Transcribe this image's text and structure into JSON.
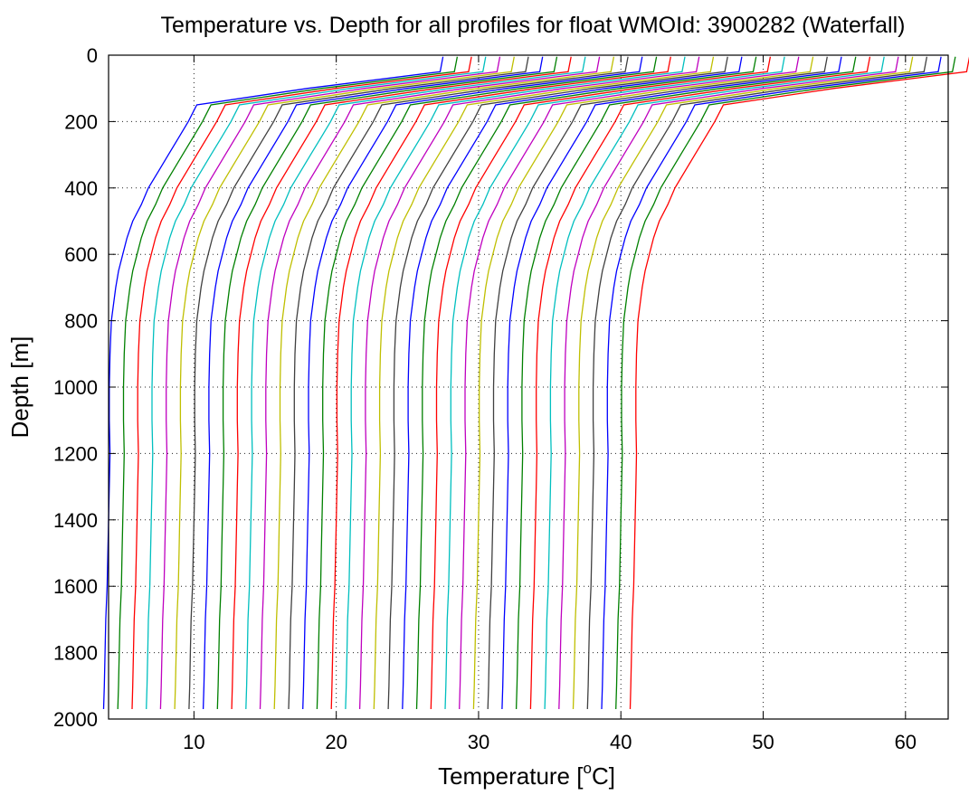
{
  "chart_data": {
    "type": "line",
    "title": "Temperature vs. Depth for all profiles for float WMOId: 3900282 (Waterfall)",
    "xlabel_main": "Temperature [",
    "xlabel_sup": "o",
    "xlabel_end": "C]",
    "ylabel": "Depth [m]",
    "xlim": [
      4,
      63
    ],
    "ylim": [
      2000,
      0
    ],
    "y_reversed": true,
    "grid": true,
    "xticks": [
      10,
      20,
      30,
      40,
      50,
      60
    ],
    "yticks": [
      0,
      200,
      400,
      600,
      800,
      1000,
      1200,
      1400,
      1600,
      1800,
      2000
    ],
    "xtick_labels": [
      "10",
      "20",
      "30",
      "40",
      "50",
      "60"
    ],
    "ytick_labels": [
      "0",
      "200",
      "400",
      "600",
      "800",
      "1000",
      "1200",
      "1400",
      "1600",
      "1800",
      "2000"
    ],
    "color_cycle": [
      "#0000ff",
      "#008000",
      "#ff0000",
      "#00bfbf",
      "#bf00bf",
      "#bfbf00",
      "#404040"
    ],
    "offset_per_profile_degC": 1,
    "base_profile": {
      "depth": [
        5,
        50,
        100,
        150,
        200,
        250,
        300,
        350,
        400,
        450,
        500,
        550,
        600,
        650,
        700,
        800,
        900,
        1000,
        1100,
        1200,
        1300,
        1400,
        1500,
        1600,
        1700,
        1800,
        1900,
        1970
      ],
      "temperature": [
        27.5,
        27.3,
        18,
        10.2,
        9.6,
        8.9,
        8.2,
        7.5,
        6.8,
        6.3,
        5.7,
        5.3,
        5.0,
        4.7,
        4.5,
        4.2,
        4.1,
        4.05,
        4.05,
        4.1,
        4.05,
        4.0,
        3.95,
        3.9,
        3.8,
        3.75,
        3.7,
        3.65
      ]
    },
    "profile_offsets": [
      0,
      1,
      2,
      3,
      4,
      5,
      6,
      7,
      8,
      9,
      10,
      11,
      12,
      13,
      14,
      15,
      16,
      17,
      18,
      19,
      20,
      21,
      22,
      23,
      24,
      25,
      26,
      27,
      28,
      29,
      30,
      31,
      32,
      33,
      34,
      35,
      36,
      37
    ]
  }
}
